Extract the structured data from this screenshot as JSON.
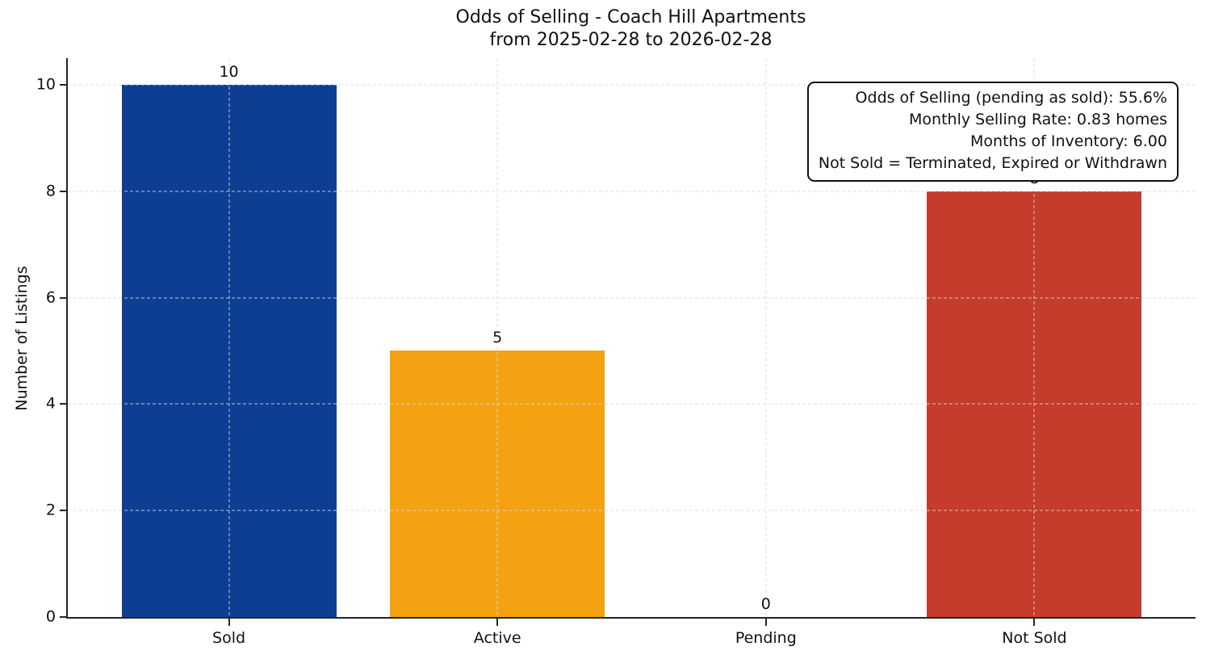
{
  "title": {
    "line1": "Odds of Selling - Coach Hill Apartments",
    "line2": "from 2025-02-28 to 2026-02-28"
  },
  "stats_box": {
    "lines": [
      "Odds of Selling (pending as sold): 55.6%",
      "Monthly Selling Rate: 0.83 homes",
      "Months of Inventory: 6.00",
      "Not Sold = Terminated, Expired or Withdrawn"
    ]
  },
  "chart_data": {
    "type": "bar",
    "title": "Odds of Selling - Coach Hill Apartments\nfrom 2025-02-28 to 2026-02-28",
    "categories": [
      "Sold",
      "Active",
      "Pending",
      "Not Sold"
    ],
    "values": [
      10,
      5,
      0,
      8
    ],
    "bar_labels": [
      "10",
      "5",
      "0",
      "8"
    ],
    "bar_colors": [
      "#0e3e92",
      "#f4a211",
      null,
      "#c53b2c"
    ],
    "xlabel": "",
    "ylabel": "Number of Listings",
    "ylim": [
      0,
      10.5
    ],
    "yticks": [
      0,
      2,
      4,
      6,
      8,
      10
    ],
    "xlim": [
      -0.6,
      3.6
    ],
    "bar_width": 0.8,
    "grid": "dashed, both axes, drawn above bars",
    "grid_color": "#d8dddd",
    "axis_color": "#262626",
    "background_color": "#ffffff",
    "annotation_position": "upper right"
  }
}
